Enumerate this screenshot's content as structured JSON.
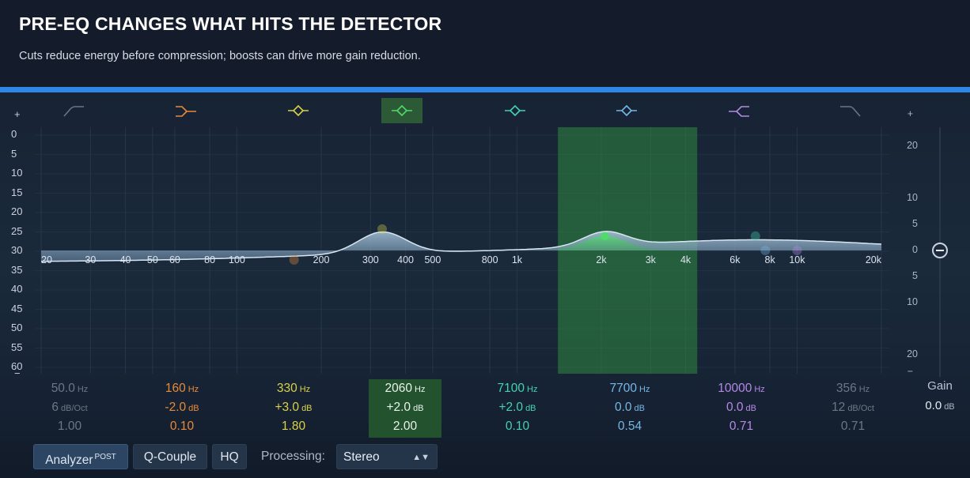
{
  "header": {
    "title": "PRE-EQ CHANGES WHAT HITS THE DETECTOR",
    "subtitle": "Cuts reduce energy before compression; boosts can drive more gain reduction."
  },
  "graph": {
    "freq_labels": [
      "20",
      "30",
      "40",
      "50",
      "60",
      "80",
      "100",
      "200",
      "300",
      "400",
      "500",
      "800",
      "1k",
      "2k",
      "3k",
      "4k",
      "6k",
      "8k",
      "10k",
      "20k"
    ],
    "freq_values": [
      20,
      30,
      40,
      50,
      60,
      80,
      100,
      200,
      300,
      400,
      500,
      800,
      1000,
      2000,
      3000,
      4000,
      6000,
      8000,
      10000,
      20000
    ],
    "db_left_labels": [
      "+",
      "0",
      "5",
      "10",
      "15",
      "20",
      "25",
      "30",
      "35",
      "40",
      "45",
      "50",
      "55",
      "60",
      "−"
    ],
    "db_right_labels": [
      "+",
      "20",
      "10",
      "5",
      "0",
      "5",
      "10",
      "20",
      "−"
    ],
    "db_right_values": [
      null,
      20,
      10,
      5,
      0,
      -5,
      -10,
      -20,
      null
    ],
    "db_range": [
      -24,
      24
    ],
    "selection_range_hz": [
      1400,
      4400
    ]
  },
  "bands": [
    {
      "icon": "low-cut-icon",
      "color": "#8f99a8",
      "freq": "50.0",
      "freq_unit": "Hz",
      "gain": "6",
      "gain_unit": "dB/Oct",
      "q": "1.00",
      "enabled": false,
      "freq_hz": 50,
      "gain_db": 0,
      "q_value": 1.0
    },
    {
      "icon": "low-shelf-icon",
      "color": "#e98a3a",
      "freq": "160",
      "freq_unit": "Hz",
      "gain": "-2.0",
      "gain_unit": "dB",
      "q": "0.10",
      "enabled": true,
      "freq_hz": 160,
      "gain_db": -2.0,
      "q_value": 0.1
    },
    {
      "icon": "bell-icon",
      "color": "#d9d24a",
      "freq": "330",
      "freq_unit": "Hz",
      "gain": "+3.0",
      "gain_unit": "dB",
      "q": "1.80",
      "enabled": true,
      "freq_hz": 330,
      "gain_db": 3.0,
      "q_value": 1.8
    },
    {
      "icon": "bell-icon",
      "color": "#4fdc6a",
      "freq": "2060",
      "freq_unit": "Hz",
      "gain": "+2.0",
      "gain_unit": "dB",
      "q": "2.00",
      "enabled": true,
      "active": true,
      "freq_hz": 2060,
      "gain_db": 2.0,
      "q_value": 2.0
    },
    {
      "icon": "bell-icon",
      "color": "#42d3b0",
      "freq": "7100",
      "freq_unit": "Hz",
      "gain": "+2.0",
      "gain_unit": "dB",
      "q": "0.10",
      "enabled": true,
      "freq_hz": 7100,
      "gain_db": 2.0,
      "q_value": 0.1
    },
    {
      "icon": "bell-icon",
      "color": "#77b7e6",
      "freq": "7700",
      "freq_unit": "Hz",
      "gain": "0.0",
      "gain_unit": "dB",
      "q": "0.54",
      "enabled": true,
      "freq_hz": 7700,
      "gain_db": 0.0,
      "q_value": 0.54
    },
    {
      "icon": "high-shelf-icon",
      "color": "#b48ae6",
      "freq": "10000",
      "freq_unit": "Hz",
      "gain": "0.0",
      "gain_unit": "dB",
      "q": "0.71",
      "enabled": true,
      "freq_hz": 10000,
      "gain_db": 0.0,
      "q_value": 0.71
    },
    {
      "icon": "high-cut-icon",
      "color": "#8f99a8",
      "freq": "356",
      "freq_unit": "Hz",
      "gain": "12",
      "gain_unit": "dB/Oct",
      "q": "0.71",
      "enabled": false,
      "freq_hz": 356,
      "gain_db": 0,
      "q_value": 0.71
    }
  ],
  "master_gain": {
    "label": "Gain",
    "value": "0.0",
    "unit": "dB",
    "db": 0
  },
  "controls": {
    "analyzer_label": "Analyzer",
    "analyzer_mode": "POST",
    "qcouple_label": "Q-Couple",
    "hq_label": "HQ",
    "processing_label": "Processing:",
    "processing_value": "Stereo"
  },
  "colors": {
    "accent": "#2f86e6",
    "curve": "#c9dbea",
    "selection": "#2e7d3a"
  }
}
